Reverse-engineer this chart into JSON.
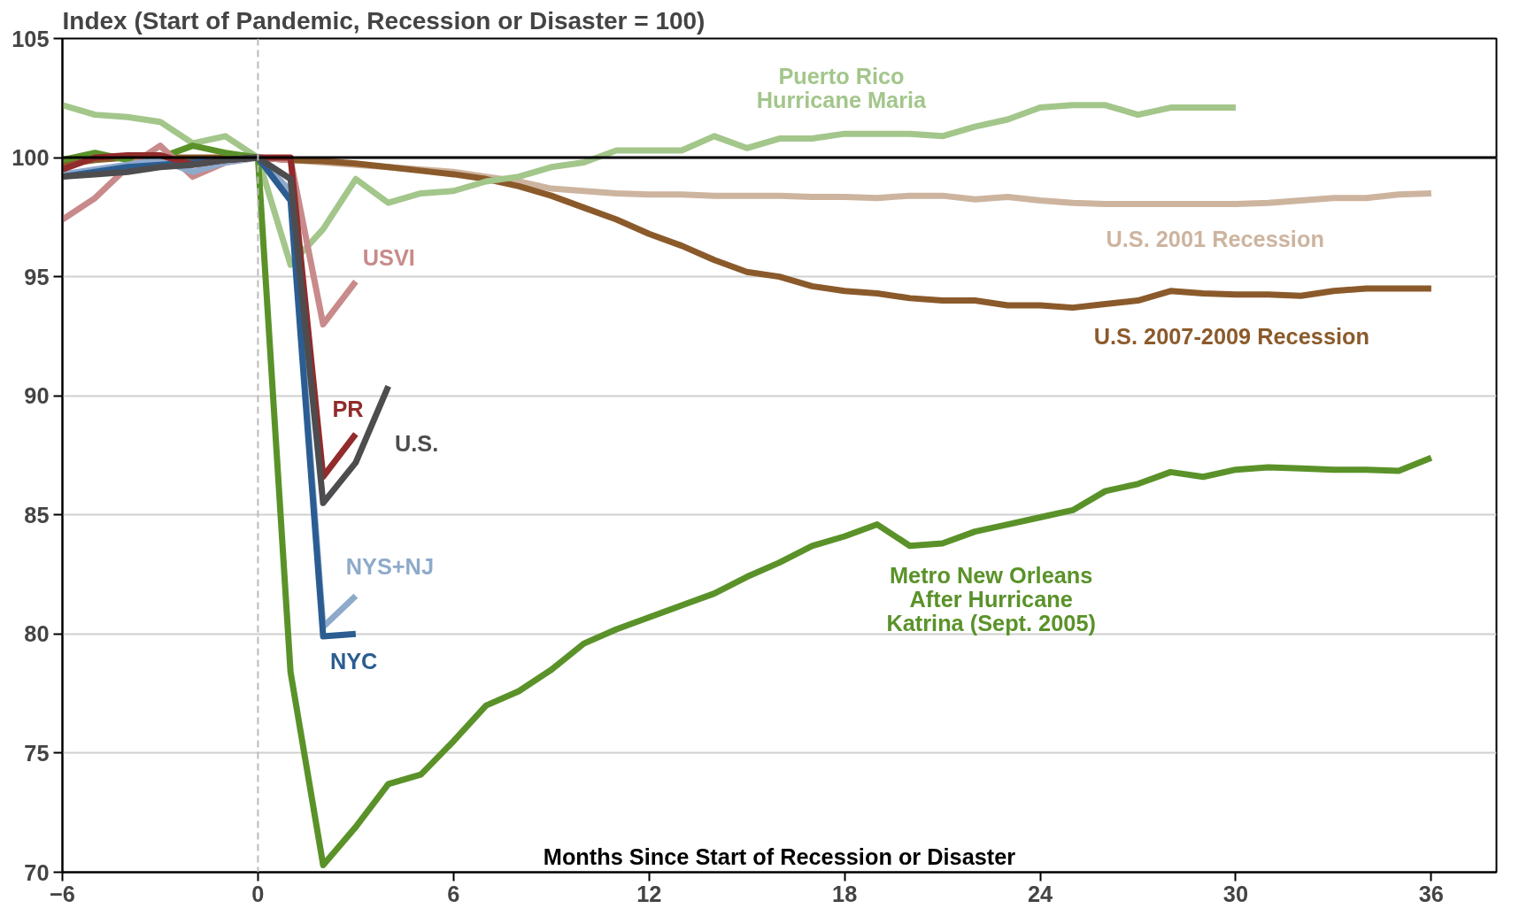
{
  "chart_data": {
    "type": "line",
    "ylabel": "Index (Start of Pandemic, Recession or Disaster = 100)",
    "xlabel": "Months Since Start of Recession or Disaster",
    "xlim": [
      -6,
      38
    ],
    "xticks": [
      -6,
      0,
      6,
      12,
      18,
      24,
      30,
      36
    ],
    "ylim": [
      70,
      105
    ],
    "yticks": [
      70,
      75,
      80,
      85,
      90,
      95,
      100,
      105
    ],
    "grid": "y",
    "line_style": "solid",
    "marker": "none",
    "series": [
      {
        "name": "U.S. 2001 Recession",
        "color": "#cdb49f",
        "x": [
          0,
          1,
          2,
          3,
          4,
          5,
          6,
          7,
          8,
          9,
          10,
          11,
          12,
          13,
          14,
          15,
          16,
          17,
          18,
          19,
          20,
          21,
          22,
          23,
          24,
          25,
          26,
          27,
          28,
          29,
          30,
          31,
          32,
          33,
          34,
          35,
          36
        ],
        "values": [
          100,
          99.9,
          99.8,
          99.7,
          99.6,
          99.5,
          99.4,
          99.2,
          99.0,
          98.7,
          98.6,
          98.5,
          98.45,
          98.45,
          98.4,
          98.4,
          98.4,
          98.35,
          98.35,
          98.3,
          98.4,
          98.4,
          98.25,
          98.35,
          98.2,
          98.1,
          98.05,
          98.05,
          98.05,
          98.05,
          98.05,
          98.1,
          98.2,
          98.3,
          98.3,
          98.45,
          98.5
        ]
      },
      {
        "name": "U.S. 2007-2009 Recession",
        "color": "#8b5a2b",
        "x": [
          -6,
          -5,
          -4,
          -3,
          -2,
          -1,
          0,
          1,
          2,
          3,
          4,
          5,
          6,
          7,
          8,
          9,
          10,
          11,
          12,
          13,
          14,
          15,
          16,
          17,
          18,
          19,
          20,
          21,
          22,
          23,
          24,
          25,
          26,
          27,
          28,
          29,
          30,
          31,
          32,
          33,
          34,
          35,
          36
        ],
        "values": [
          99.7,
          99.9,
          100,
          100,
          100,
          100,
          100,
          99.9,
          99.85,
          99.75,
          99.6,
          99.45,
          99.3,
          99.1,
          98.8,
          98.4,
          97.9,
          97.4,
          96.8,
          96.3,
          95.7,
          95.2,
          95.0,
          94.6,
          94.4,
          94.3,
          94.1,
          94.0,
          94.0,
          93.8,
          93.8,
          93.7,
          93.85,
          94.0,
          94.4,
          94.3,
          94.25,
          94.25,
          94.2,
          94.4,
          94.5,
          94.5,
          94.5
        ]
      },
      {
        "name": "Puerto Rico\nHurricane Maria",
        "color": "#a3c68b",
        "x": [
          -6,
          -5,
          -4,
          -3,
          -2,
          -1,
          0,
          1,
          2,
          3,
          4,
          5,
          6,
          7,
          8,
          9,
          10,
          11,
          12,
          13,
          14,
          15,
          16,
          17,
          18,
          19,
          20,
          21,
          22,
          23,
          24,
          25,
          26,
          27,
          28,
          29,
          30
        ],
        "values": [
          102.2,
          101.8,
          101.7,
          101.5,
          100.6,
          100.9,
          100,
          95.5,
          97.0,
          99.1,
          98.1,
          98.5,
          98.6,
          99.0,
          99.2,
          99.6,
          99.8,
          100.3,
          100.3,
          100.3,
          100.9,
          100.4,
          100.8,
          100.8,
          101.0,
          101.0,
          101.0,
          100.9,
          101.3,
          101.6,
          102.1,
          102.2,
          102.2,
          101.8,
          102.1,
          102.1,
          102.1
        ]
      },
      {
        "name": "Metro New Orleans\nAfter Hurricane\nKatrina (Sept. 2005)",
        "color": "#5a9229",
        "x": [
          -6,
          -5,
          -4,
          -3,
          -2,
          -1,
          0,
          1,
          2,
          3,
          4,
          5,
          6,
          7,
          8,
          9,
          10,
          11,
          12,
          13,
          14,
          15,
          16,
          17,
          18,
          19,
          20,
          21,
          22,
          23,
          24,
          25,
          26,
          27,
          28,
          29,
          30,
          31,
          32,
          33,
          34,
          35,
          36
        ],
        "values": [
          99.9,
          100.2,
          99.9,
          100,
          100.5,
          100.2,
          100,
          78.4,
          70.3,
          71.9,
          73.7,
          74.1,
          75.5,
          77.0,
          77.6,
          78.5,
          79.6,
          80.2,
          80.7,
          81.2,
          81.7,
          82.4,
          83.0,
          83.7,
          84.1,
          84.6,
          83.7,
          83.8,
          84.3,
          84.6,
          84.9,
          85.2,
          86.0,
          86.3,
          86.8,
          86.6,
          86.9,
          87.0,
          86.95,
          86.9,
          86.9,
          86.85,
          87.4
        ]
      },
      {
        "name": "USVI",
        "color": "#c88a8a",
        "x": [
          -6,
          -5,
          -4,
          -3,
          -2,
          -1,
          0,
          1,
          2,
          3
        ],
        "values": [
          97.4,
          98.3,
          99.6,
          100.5,
          99.2,
          99.8,
          100,
          99.9,
          93.0,
          94.8
        ]
      },
      {
        "name": "NYS+NJ",
        "color": "#8eaacb",
        "x": [
          -6,
          -5,
          -4,
          -3,
          -2,
          -1,
          0,
          1,
          2,
          3
        ],
        "values": [
          99.3,
          99.5,
          99.7,
          99.9,
          99.4,
          99.8,
          100,
          98.6,
          80.3,
          81.6
        ]
      },
      {
        "name": "NYC",
        "color": "#2b5d92",
        "x": [
          -6,
          -5,
          -4,
          -3,
          -2,
          -1,
          0,
          1,
          2,
          3
        ],
        "values": [
          99.2,
          99.4,
          99.6,
          99.7,
          99.8,
          99.9,
          100,
          98.2,
          79.9,
          80.0
        ]
      },
      {
        "name": "PR",
        "color": "#922b2b",
        "x": [
          -6,
          -5,
          -4,
          -3,
          -2,
          -1,
          0,
          1,
          2,
          3
        ],
        "values": [
          99.5,
          100,
          100.1,
          100.1,
          99.7,
          99.9,
          100,
          100,
          86.6,
          88.4
        ]
      },
      {
        "name": "U.S.",
        "color": "#4d4d4f",
        "x": [
          -6,
          -5,
          -4,
          -3,
          -2,
          -1,
          0,
          1,
          2,
          3,
          4
        ],
        "values": [
          99.2,
          99.3,
          99.4,
          99.6,
          99.7,
          99.9,
          100,
          99.1,
          85.5,
          87.2,
          90.4
        ]
      }
    ],
    "ref_lines": [
      {
        "axis": "y",
        "value": 100,
        "color": "#000000",
        "line_style": "solid"
      },
      {
        "axis": "x",
        "value": 0,
        "color": "#bbbbbb",
        "line_style": "dashed"
      }
    ]
  }
}
